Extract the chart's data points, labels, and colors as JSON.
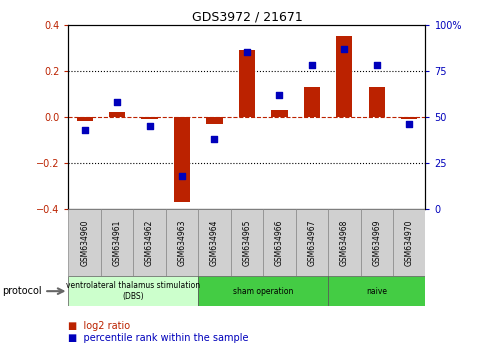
{
  "title": "GDS3972 / 21671",
  "samples": [
    "GSM634960",
    "GSM634961",
    "GSM634962",
    "GSM634963",
    "GSM634964",
    "GSM634965",
    "GSM634966",
    "GSM634967",
    "GSM634968",
    "GSM634969",
    "GSM634970"
  ],
  "log2_ratio": [
    -0.02,
    0.02,
    -0.01,
    -0.37,
    -0.03,
    0.29,
    0.03,
    0.13,
    0.35,
    0.13,
    -0.01
  ],
  "percentile_rank": [
    43,
    58,
    45,
    18,
    38,
    85,
    62,
    78,
    87,
    78,
    46
  ],
  "bar_color": "#BB2200",
  "dot_color": "#0000BB",
  "dashed_line_color": "#BB2200",
  "ylim_left": [
    -0.4,
    0.4
  ],
  "ylim_right": [
    0,
    100
  ],
  "yticks_left": [
    -0.4,
    -0.2,
    0.0,
    0.2,
    0.4
  ],
  "yticks_right": [
    0,
    25,
    50,
    75,
    100
  ],
  "legend_log2": "log2 ratio",
  "legend_pct": "percentile rank within the sample",
  "protocol_label": "protocol",
  "group_configs": [
    {
      "start": 0,
      "end": 3,
      "label": "ventrolateral thalamus stimulation\n(DBS)",
      "color": "#ccffcc"
    },
    {
      "start": 4,
      "end": 7,
      "label": "sham operation",
      "color": "#44cc44"
    },
    {
      "start": 8,
      "end": 10,
      "label": "naive",
      "color": "#44cc44"
    }
  ]
}
